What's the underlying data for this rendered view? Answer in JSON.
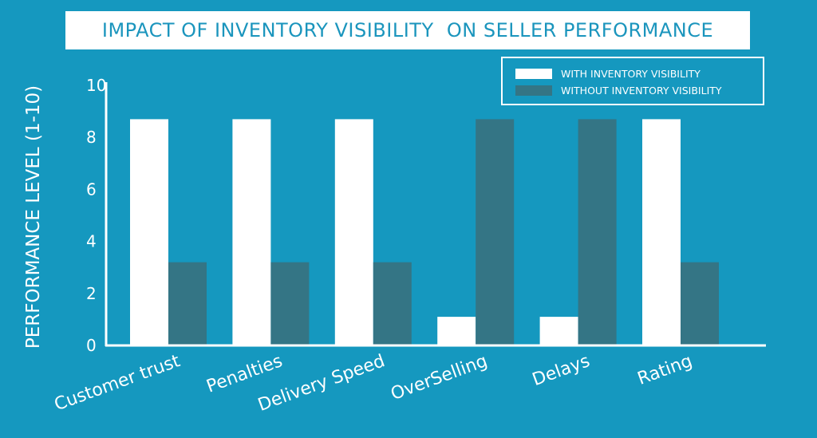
{
  "chart_data": {
    "type": "bar",
    "title": "IMPACT OF INVENTORY VISIBILITY  ON SELLER PERFORMANCE",
    "xlabel": "",
    "ylabel": "PERFORMANCE LEVEL (1-10)",
    "ylim": [
      0,
      10
    ],
    "yticks": [
      "0",
      "2",
      "4",
      "6",
      "8",
      "10"
    ],
    "categories": [
      "Customer trust",
      "Penalties",
      "Delivery Speed",
      "OverSelling",
      "Delays",
      "Rating"
    ],
    "series": [
      {
        "name": "WITH INVENTORY VISIBILITY",
        "color": "#ffffff",
        "values": [
          8.7,
          8.7,
          8.7,
          1.1,
          1.1,
          8.7
        ]
      },
      {
        "name": "WITHOUT INVENTORY VISIBILITY",
        "color": "#347585",
        "values": [
          3.2,
          3.2,
          3.2,
          8.7,
          8.7,
          3.2
        ]
      }
    ],
    "legend_position": "top-right",
    "grid": false
  },
  "colors": {
    "background": "#1598bf",
    "title_text": "#1b95bd",
    "axis": "#ffffff"
  }
}
